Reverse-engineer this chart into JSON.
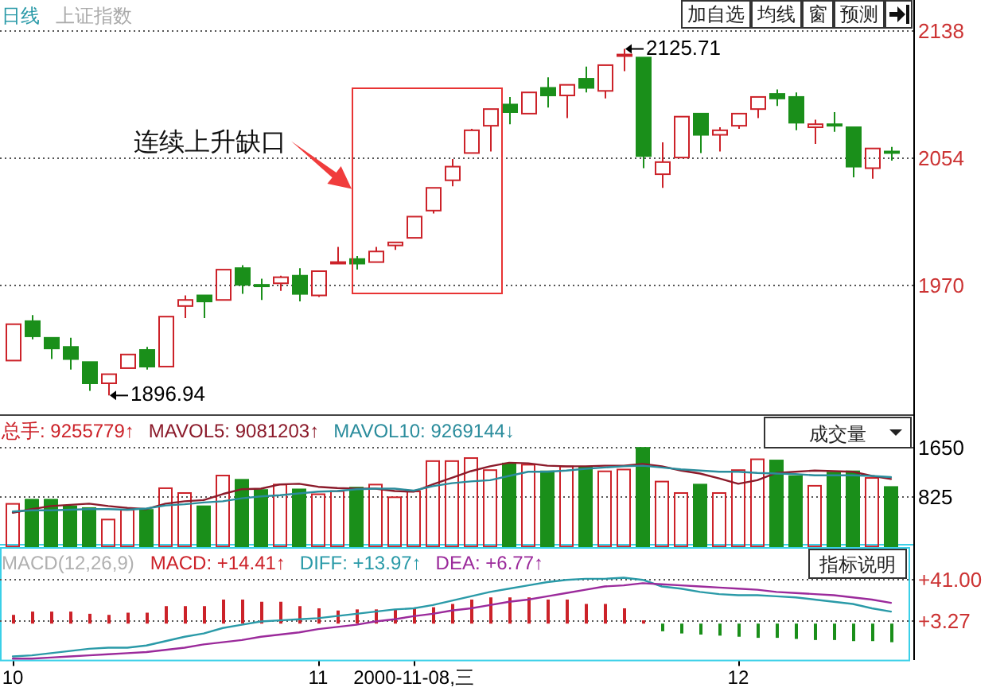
{
  "chart_data": [
    {
      "type": "candlestick",
      "title": "日线",
      "subtitle": "上证指数",
      "categories": [
        null,
        null,
        null,
        null,
        null,
        null,
        null,
        null,
        null,
        null,
        null,
        null,
        null,
        null,
        null,
        null,
        null,
        null,
        null,
        null,
        null,
        null,
        null,
        null,
        null,
        null,
        null,
        null,
        null,
        null,
        null,
        null,
        null,
        null,
        null,
        null,
        null,
        null,
        null,
        null,
        null,
        null,
        null,
        null,
        null,
        null,
        null
      ],
      "ohlc": [
        [
          1920,
          1944,
          1920,
          1944
        ],
        [
          1946,
          1950,
          1934,
          1936
        ],
        [
          1935,
          1935,
          1921,
          1928
        ],
        [
          1929,
          1935,
          1914,
          1921
        ],
        [
          1919,
          1919,
          1900,
          1905
        ],
        [
          1905,
          1911,
          1896.94,
          1911
        ],
        [
          1915,
          1924,
          1915,
          1924
        ],
        [
          1927,
          1929,
          1914,
          1916
        ],
        [
          1916,
          1949,
          1916,
          1949
        ],
        [
          1956,
          1963,
          1948,
          1960
        ],
        [
          1963,
          1963,
          1948,
          1959
        ],
        [
          1960,
          1980,
          1960,
          1980
        ],
        [
          1981,
          1983,
          1964,
          1970
        ],
        [
          1970,
          1974,
          1960,
          1969
        ],
        [
          1971,
          1976,
          1966,
          1975
        ],
        [
          1976,
          1981,
          1959,
          1964
        ],
        [
          1963,
          1979,
          1962,
          1979
        ],
        [
          1984,
          1995,
          1984,
          1985
        ],
        [
          1987,
          1989,
          1980,
          1984
        ],
        [
          1985,
          1995,
          1985,
          1992
        ],
        [
          1996,
          1998,
          1993,
          1998
        ],
        [
          2001,
          2015,
          2001,
          2015
        ],
        [
          2019,
          2034,
          2017,
          2034
        ],
        [
          2039,
          2053,
          2035,
          2048
        ],
        [
          2057,
          2073,
          2057,
          2072
        ],
        [
          2075,
          2086,
          2058,
          2086
        ],
        [
          2089,
          2094,
          2076,
          2084
        ],
        [
          2083,
          2097,
          2083,
          2097
        ],
        [
          2100,
          2107,
          2087,
          2095
        ],
        [
          2095,
          2102,
          2080,
          2102
        ],
        [
          2106,
          2114,
          2097,
          2100
        ],
        [
          2098,
          2115,
          2093,
          2115
        ],
        [
          2121,
          2125.71,
          2111,
          2122
        ],
        [
          2120,
          2120,
          2047,
          2055
        ],
        [
          2043,
          2064,
          2034,
          2051
        ],
        [
          2054,
          2081,
          2054,
          2081
        ],
        [
          2083,
          2083,
          2057,
          2069
        ],
        [
          2069,
          2074,
          2058,
          2072
        ],
        [
          2075,
          2083,
          2073,
          2083
        ],
        [
          2086,
          2094,
          2080,
          2094
        ],
        [
          2096,
          2099,
          2088,
          2093
        ],
        [
          2094,
          2097,
          2072,
          2077
        ],
        [
          2074,
          2079,
          2063,
          2076
        ],
        [
          2076,
          2084,
          2071,
          2075
        ],
        [
          2074,
          2074,
          2041,
          2048
        ],
        [
          2047,
          2060,
          2040,
          2060
        ],
        [
          2058,
          2061,
          2052,
          2057
        ]
      ],
      "colors": [
        "#cc2229",
        "#1a8f1a",
        "#1a8f1a",
        "#1a8f1a",
        "#1a8f1a",
        "#cc2229",
        "#cc2229",
        "#1a8f1a",
        "#cc2229",
        "#cc2229",
        "#1a8f1a",
        "#cc2229",
        "#1a8f1a",
        "#1a8f1a",
        "#cc2229",
        "#1a8f1a",
        "#cc2229",
        "#cc2229",
        "#1a8f1a",
        "#cc2229",
        "#cc2229",
        "#cc2229",
        "#cc2229",
        "#cc2229",
        "#cc2229",
        "#cc2229",
        "#1a8f1a",
        "#cc2229",
        "#1a8f1a",
        "#cc2229",
        "#1a8f1a",
        "#cc2229",
        "#cc2229",
        "#1a8f1a",
        "#cc2229",
        "#cc2229",
        "#1a8f1a",
        "#cc2229",
        "#cc2229",
        "#cc2229",
        "#1a8f1a",
        "#1a8f1a",
        "#cc2229",
        "#1a8f1a",
        "#1a8f1a",
        "#cc2229",
        "#1a8f1a"
      ],
      "ylim": [
        1884,
        2158
      ],
      "yticks": [
        1970,
        2054,
        2138
      ],
      "grid": "y",
      "tick_labels": "y",
      "annotations": [
        "连续上升缺口",
        "2125.71",
        "1896.94",
        "加自选",
        "均线",
        "窗",
        "预测"
      ]
    },
    {
      "type": "bar",
      "categories": [
        null,
        null,
        null,
        null,
        null,
        null,
        null,
        null,
        null,
        null,
        null,
        null,
        null,
        null,
        null,
        null,
        null,
        null,
        null,
        null,
        null,
        null,
        null,
        null,
        null,
        null,
        null,
        null,
        null,
        null,
        null,
        null,
        null,
        null,
        null,
        null,
        null,
        null,
        null,
        null,
        null,
        null,
        null,
        null,
        null,
        null,
        null
      ],
      "series": [
        {
          "name": "总手: 9255779↑",
          "color": "#cc2229",
          "colors": [
            "#cc2229",
            "#1a8f1a",
            "#1a8f1a",
            "#1a8f1a",
            "#1a8f1a",
            "#cc2229",
            "#cc2229",
            "#1a8f1a",
            "#cc2229",
            "#cc2229",
            "#1a8f1a",
            "#cc2229",
            "#1a8f1a",
            "#1a8f1a",
            "#cc2229",
            "#1a8f1a",
            "#cc2229",
            "#cc2229",
            "#1a8f1a",
            "#cc2229",
            "#cc2229",
            "#cc2229",
            "#cc2229",
            "#cc2229",
            "#cc2229",
            "#cc2229",
            "#1a8f1a",
            "#cc2229",
            "#1a8f1a",
            "#cc2229",
            "#1a8f1a",
            "#cc2229",
            "#cc2229",
            "#1a8f1a",
            "#cc2229",
            "#cc2229",
            "#1a8f1a",
            "#cc2229",
            "#cc2229",
            "#cc2229",
            "#1a8f1a",
            "#1a8f1a",
            "#cc2229",
            "#1a8f1a",
            "#1a8f1a",
            "#cc2229",
            "#1a8f1a"
          ],
          "values": [
            720,
            790,
            790,
            680,
            650,
            460,
            620,
            620,
            980,
            900,
            680,
            1190,
            1120,
            950,
            1040,
            960,
            880,
            930,
            990,
            1040,
            830,
            926,
            1430,
            1430,
            1480,
            1280,
            1390,
            1370,
            1260,
            1340,
            1330,
            1260,
            1290,
            1650,
            1090,
            900,
            1040,
            900,
            1280,
            1460,
            1440,
            1180,
            1020,
            1240,
            1260,
            1150,
            1000
          ]
        },
        {
          "name": "MAVOL5: 9081203↑",
          "type": "line",
          "color": "#8b1a2a",
          "values": [
            560,
            620,
            670,
            690,
            710,
            670,
            640,
            620,
            710,
            750,
            770,
            870,
            950,
            960,
            1030,
            1040,
            990,
            970,
            960,
            960,
            920,
            908,
            1030,
            1140,
            1250,
            1330,
            1390,
            1380,
            1340,
            1330,
            1330,
            1340,
            1340,
            1370,
            1330,
            1260,
            1210,
            1130,
            1040,
            1100,
            1220,
            1240,
            1260,
            1250,
            1240,
            1170,
            1120
          ]
        },
        {
          "name": "MAVOL10: 9269144↓",
          "type": "line",
          "color": "#2a8c9c",
          "values": [
            580,
            600,
            600,
            610,
            620,
            620,
            610,
            630,
            680,
            700,
            730,
            750,
            800,
            830,
            850,
            880,
            910,
            920,
            950,
            960,
            960,
            927,
            1000,
            1050,
            1080,
            1100,
            1170,
            1240,
            1240,
            1260,
            1290,
            1310,
            1330,
            1340,
            1310,
            1280,
            1260,
            1240,
            1240,
            1220,
            1210,
            1200,
            1180,
            1180,
            1180,
            1170,
            1150
          ]
        }
      ],
      "ylim": [
        0,
        2180
      ],
      "yticks": [
        825,
        1650
      ],
      "grid": "y",
      "legend": "top left",
      "tick_labels": "y",
      "annotations": [
        "成交量"
      ]
    },
    {
      "type": "bar",
      "title": "MACD(12,26,9)",
      "categories": [
        "10",
        null,
        null,
        null,
        null,
        null,
        null,
        null,
        null,
        null,
        null,
        null,
        null,
        null,
        null,
        null,
        "11",
        null,
        null,
        null,
        null,
        "2000-11-08,三",
        null,
        null,
        null,
        null,
        null,
        null,
        null,
        null,
        null,
        null,
        null,
        null,
        null,
        null,
        null,
        null,
        "12",
        null,
        null,
        null,
        null,
        null,
        null,
        null,
        null
      ],
      "series": [
        {
          "name": "MACD: +14.41↑",
          "color": "#cc2229",
          "colors": [
            "#cc2229",
            "#cc2229",
            "#cc2229",
            "#cc2229",
            "#cc2229",
            "#cc2229",
            "#cc2229",
            "#cc2229",
            "#cc2229",
            "#cc2229",
            "#cc2229",
            "#cc2229",
            "#cc2229",
            "#cc2229",
            "#cc2229",
            "#cc2229",
            "#cc2229",
            "#cc2229",
            "#cc2229",
            "#cc2229",
            "#cc2229",
            "#cc2229",
            "#cc2229",
            "#cc2229",
            "#cc2229",
            "#cc2229",
            "#cc2229",
            "#cc2229",
            "#cc2229",
            "#cc2229",
            "#cc2229",
            "#cc2229",
            "#cc2229",
            "#cc2229",
            "#1a8f1a",
            "#1a8f1a",
            "#1a8f1a",
            "#1a8f1a",
            "#1a8f1a",
            "#1a8f1a",
            "#1a8f1a",
            "#1a8f1a",
            "#1a8f1a",
            "#1a8f1a",
            "#1a8f1a",
            "#1a8f1a",
            "#1a8f1a"
          ],
          "values": [
            8,
            11,
            11,
            11,
            9,
            8,
            10,
            10,
            16,
            16,
            16,
            22,
            22,
            20,
            20,
            16,
            14,
            12,
            13,
            13,
            13,
            14.41,
            15,
            18,
            22,
            24,
            24,
            24,
            22,
            22,
            18,
            18,
            14,
            3,
            -7,
            -9,
            -10,
            -11,
            -12,
            -13,
            -13,
            -14,
            -15,
            -15,
            -16,
            -16,
            -17
          ]
        },
        {
          "name": "DIFF: +13.97↑",
          "type": "line",
          "color": "#2a9aa8",
          "values": [
            -30,
            -29,
            -27,
            -25,
            -23,
            -22,
            -22,
            -20,
            -16,
            -12,
            -9,
            -4,
            -1,
            2,
            3,
            4,
            5,
            7,
            9,
            11,
            13,
            13.97,
            17,
            21,
            25,
            29,
            32,
            35,
            38,
            40,
            41,
            41,
            42,
            40,
            34,
            32,
            29,
            27,
            26,
            26,
            25,
            24,
            22,
            20,
            18,
            14,
            11
          ]
        },
        {
          "name": "DEA: +6.77↑",
          "type": "line",
          "color": "#9b2a9b",
          "values": [
            -32,
            -32,
            -31,
            -30,
            -29,
            -28,
            -27,
            -26,
            -24,
            -22,
            -19,
            -17,
            -15,
            -12,
            -10,
            -8,
            -5,
            -3,
            -1,
            2,
            4,
            6.77,
            9,
            12,
            14,
            17,
            20,
            22,
            25,
            28,
            31,
            34,
            35,
            37,
            36,
            35,
            34,
            33,
            32,
            31,
            29,
            28,
            27,
            26,
            24,
            22,
            19
          ]
        }
      ],
      "ylim": [
        -33,
        70
      ],
      "yticks": [
        {
          "value": 41,
          "label": "+41.00"
        },
        {
          "value": 3.27,
          "label": "+3.27"
        }
      ],
      "grid": "y",
      "legend": "top left",
      "annotations": [
        "指标说明"
      ]
    }
  ]
}
